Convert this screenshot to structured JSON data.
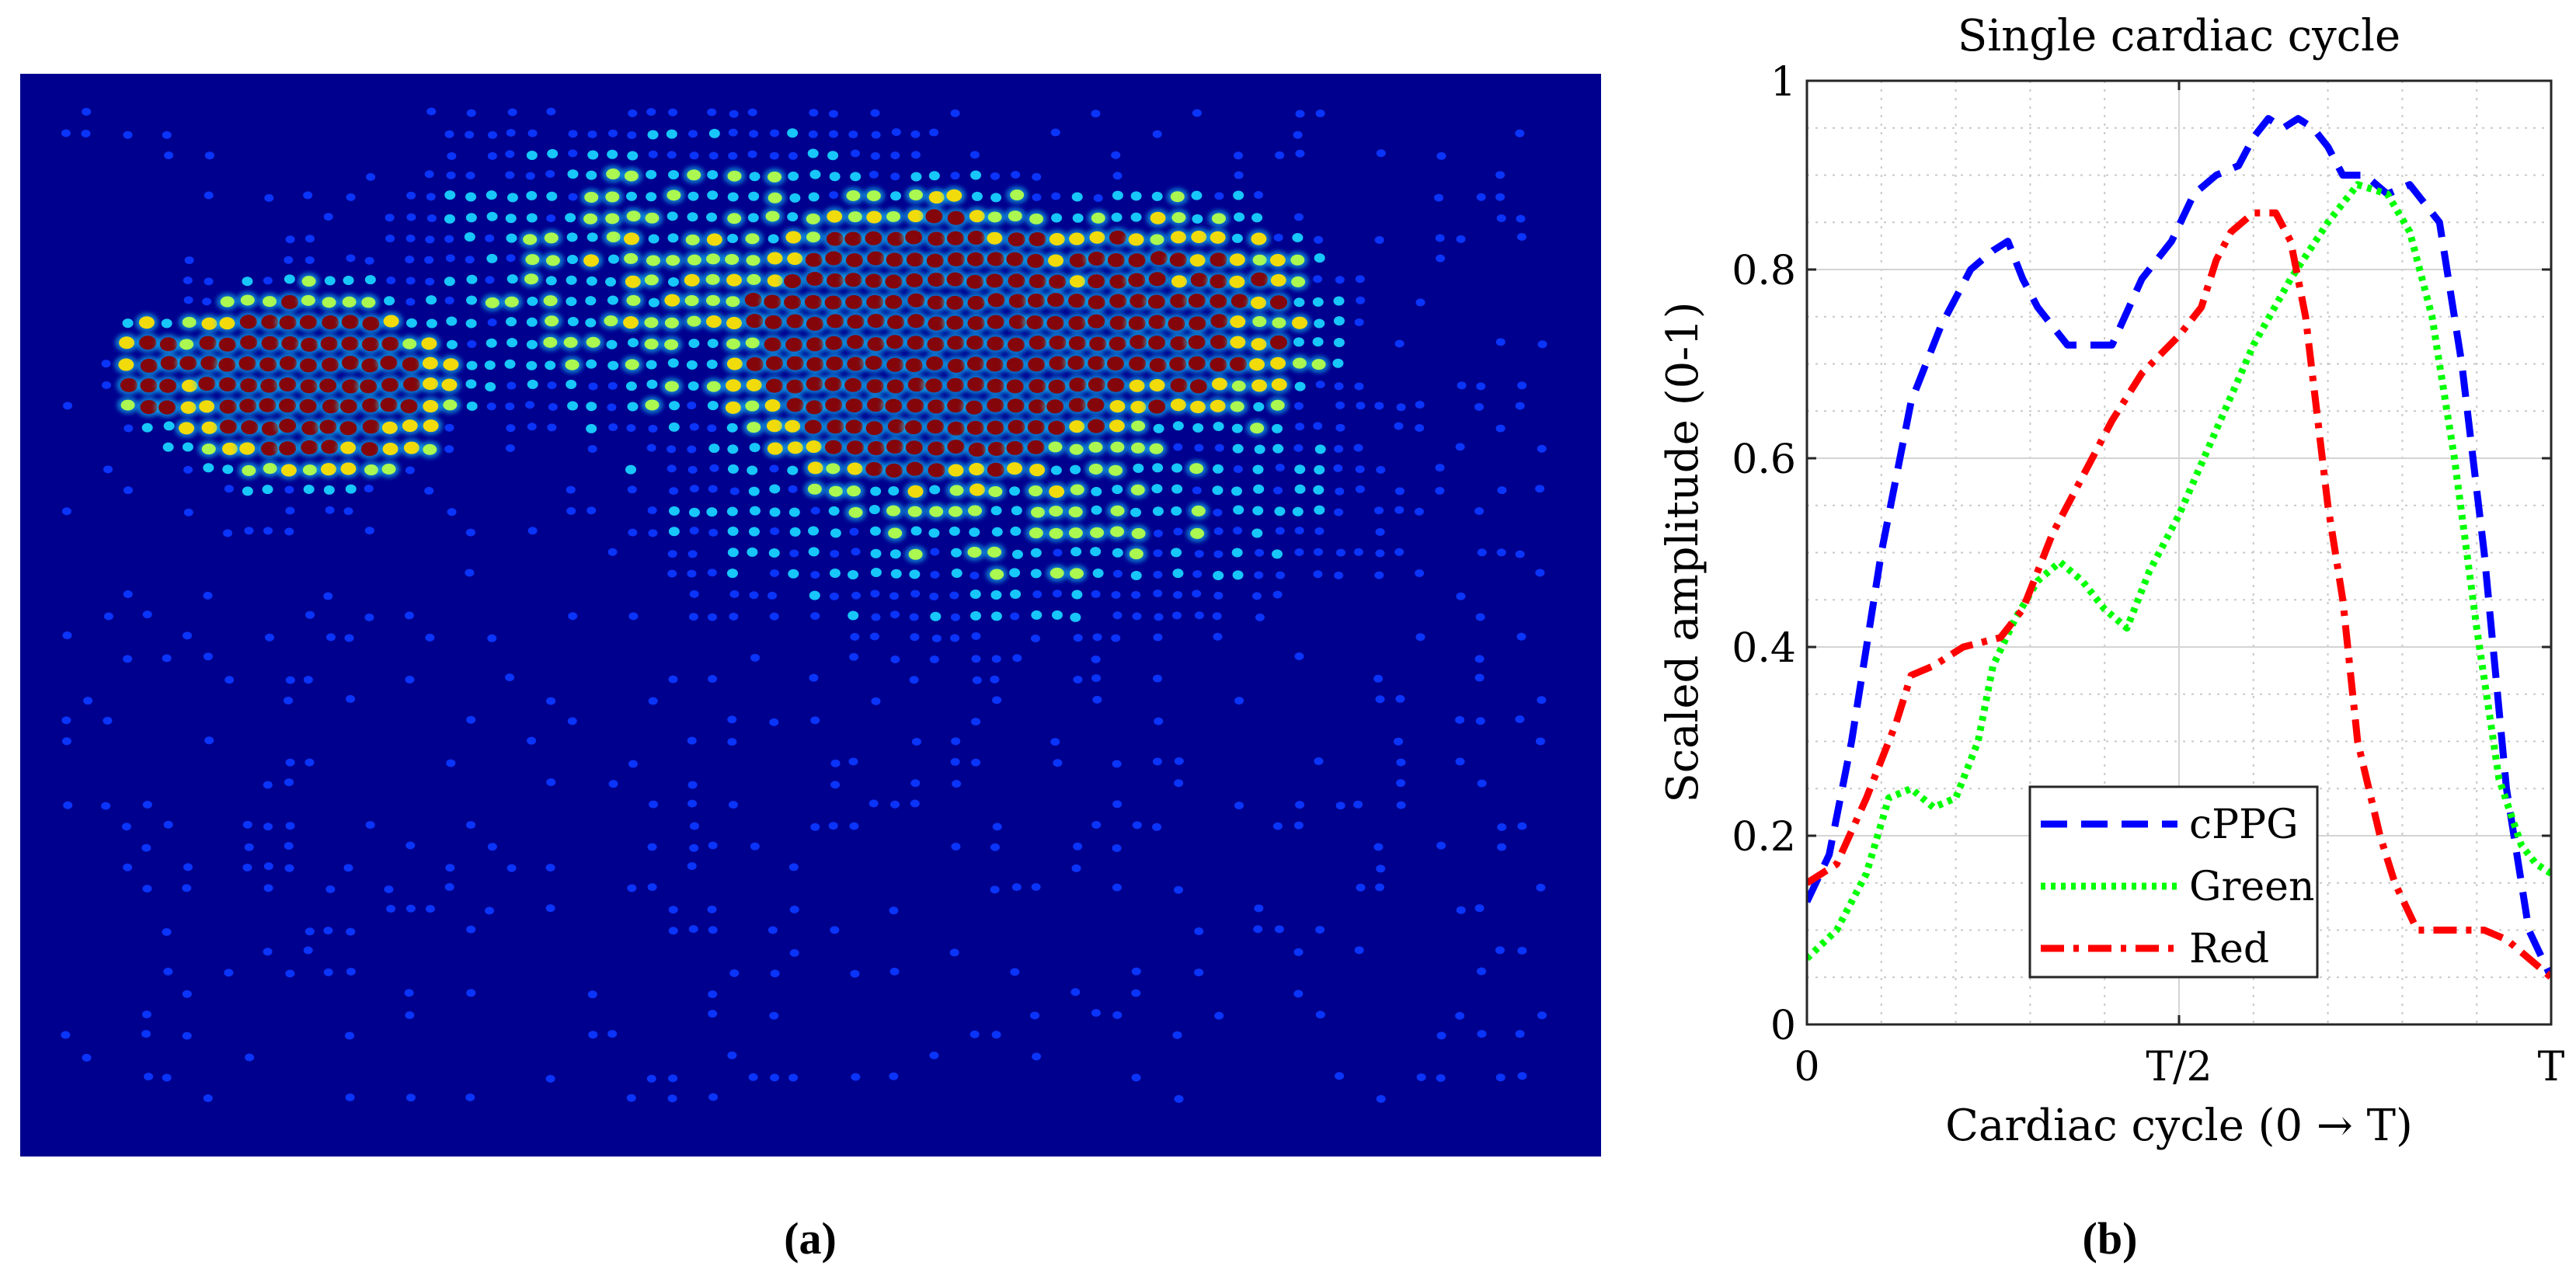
{
  "panel_a": {
    "label": "(a)",
    "background_color": "#00008f",
    "blob_colors": [
      "#0b37ff",
      "#18d2ff",
      "#b4ff4a",
      "#ffe000",
      "#8b0000"
    ]
  },
  "panel_b": {
    "label": "(b)"
  },
  "chart_data": {
    "type": "line",
    "title": "Single cardiac cycle",
    "xlabel": "Cardiac cycle (0 → T)",
    "ylabel": "Scaled amplitude (0-1)",
    "xlim": [
      0,
      1
    ],
    "ylim": [
      0,
      1
    ],
    "x_ticks": [
      {
        "value": 0,
        "label": "0"
      },
      {
        "value": 0.5,
        "label": "T/2"
      },
      {
        "value": 1,
        "label": "T"
      }
    ],
    "y_ticks": [
      {
        "value": 0,
        "label": "0"
      },
      {
        "value": 0.2,
        "label": "0.2"
      },
      {
        "value": 0.4,
        "label": "0.4"
      },
      {
        "value": 0.6,
        "label": "0.6"
      },
      {
        "value": 0.8,
        "label": "0.8"
      },
      {
        "value": 1,
        "label": "1"
      }
    ],
    "grid": true,
    "minor_grid": true,
    "legend_position": "lower-center",
    "series": [
      {
        "name": "cPPG",
        "color": "#0000ff",
        "style": "dashed",
        "x": [
          0,
          0.03,
          0.06,
          0.1,
          0.14,
          0.18,
          0.22,
          0.25,
          0.27,
          0.29,
          0.31,
          0.33,
          0.35,
          0.38,
          0.41,
          0.45,
          0.49,
          0.52,
          0.55,
          0.58,
          0.6,
          0.62,
          0.64,
          0.66,
          0.68,
          0.7,
          0.72,
          0.75,
          0.78,
          0.81,
          0.85,
          0.88,
          0.91,
          0.94,
          0.97,
          1.0
        ],
        "y": [
          0.13,
          0.18,
          0.3,
          0.5,
          0.66,
          0.74,
          0.8,
          0.82,
          0.83,
          0.79,
          0.76,
          0.74,
          0.72,
          0.72,
          0.72,
          0.79,
          0.83,
          0.88,
          0.9,
          0.91,
          0.94,
          0.96,
          0.95,
          0.96,
          0.95,
          0.93,
          0.9,
          0.9,
          0.88,
          0.89,
          0.85,
          0.7,
          0.5,
          0.25,
          0.1,
          0.05
        ]
      },
      {
        "name": "Green",
        "color": "#00ff00",
        "style": "dotted",
        "x": [
          0,
          0.04,
          0.08,
          0.11,
          0.14,
          0.17,
          0.2,
          0.23,
          0.25,
          0.28,
          0.31,
          0.34,
          0.37,
          0.4,
          0.43,
          0.46,
          0.5,
          0.55,
          0.6,
          0.65,
          0.7,
          0.74,
          0.78,
          0.81,
          0.84,
          0.87,
          0.9,
          0.93,
          0.96,
          0.98,
          1.0
        ],
        "y": [
          0.07,
          0.1,
          0.16,
          0.24,
          0.25,
          0.23,
          0.24,
          0.3,
          0.38,
          0.43,
          0.47,
          0.49,
          0.47,
          0.44,
          0.42,
          0.48,
          0.54,
          0.63,
          0.72,
          0.79,
          0.85,
          0.89,
          0.88,
          0.84,
          0.75,
          0.6,
          0.42,
          0.26,
          0.19,
          0.17,
          0.16
        ]
      },
      {
        "name": "Red",
        "color": "#ff0000",
        "style": "dashdot",
        "x": [
          0,
          0.04,
          0.08,
          0.12,
          0.14,
          0.17,
          0.21,
          0.26,
          0.29,
          0.33,
          0.37,
          0.41,
          0.45,
          0.5,
          0.53,
          0.55,
          0.57,
          0.6,
          0.63,
          0.65,
          0.67,
          0.7,
          0.72,
          0.74,
          0.77,
          0.79,
          0.82,
          0.85,
          0.88,
          0.91,
          0.94,
          0.97,
          1.0
        ],
        "y": [
          0.15,
          0.17,
          0.24,
          0.32,
          0.37,
          0.38,
          0.4,
          0.41,
          0.44,
          0.52,
          0.58,
          0.64,
          0.69,
          0.73,
          0.76,
          0.81,
          0.84,
          0.86,
          0.86,
          0.83,
          0.75,
          0.55,
          0.45,
          0.3,
          0.2,
          0.15,
          0.1,
          0.1,
          0.1,
          0.1,
          0.09,
          0.07,
          0.05
        ]
      }
    ]
  }
}
